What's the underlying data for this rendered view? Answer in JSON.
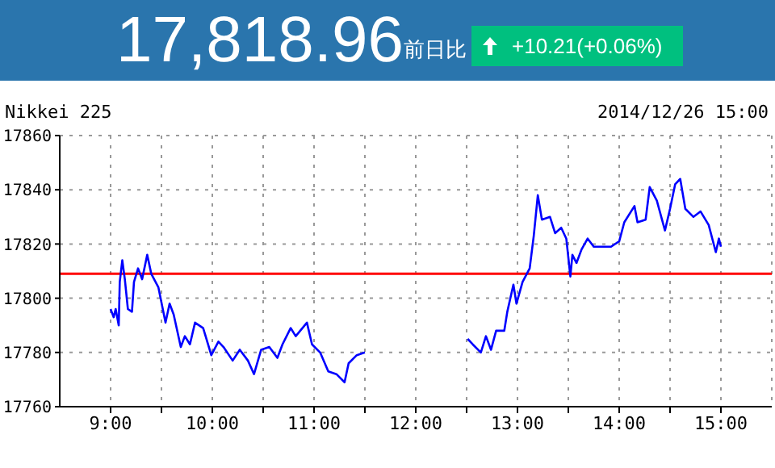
{
  "chart_data": {
    "type": "line",
    "title": "17,818.96",
    "subtitle": "前日比",
    "annotations": [
      "+10.21(+0.06%)",
      "Nikkei 225",
      "2014/12/26 15:00"
    ],
    "x": [
      9.0,
      9.03,
      9.05,
      9.08,
      9.09,
      9.115,
      9.14,
      9.17,
      9.21,
      9.23,
      9.27,
      9.31,
      9.36,
      9.4,
      9.47,
      9.54,
      9.58,
      9.62,
      9.69,
      9.73,
      9.78,
      9.83,
      9.91,
      9.99,
      10.06,
      10.11,
      10.2,
      10.27,
      10.35,
      10.41,
      10.48,
      10.56,
      10.64,
      10.69,
      10.77,
      10.82,
      10.93,
      10.98,
      11.06,
      11.14,
      11.22,
      11.3,
      11.34,
      11.42,
      11.5,
      12.0,
      12.51,
      12.56,
      12.64,
      12.69,
      12.74,
      12.79,
      12.87,
      12.9,
      12.96,
      12.99,
      13.05,
      13.12,
      13.16,
      13.2,
      13.24,
      13.32,
      13.37,
      13.43,
      13.48,
      13.52,
      13.54,
      13.58,
      13.63,
      13.69,
      13.75,
      13.84,
      13.92,
      14.0,
      14.05,
      14.15,
      14.18,
      14.26,
      14.3,
      14.37,
      14.45,
      14.5,
      14.55,
      14.6,
      14.65,
      14.73,
      14.8,
      14.88,
      14.95,
      14.98,
      15.0
    ],
    "series": [
      {
        "color": "#0000ff",
        "values": [
          17796,
          17793,
          17796,
          17790,
          17806,
          17814,
          17807,
          17796,
          17795,
          17806,
          17811,
          17807,
          17816,
          17809,
          17804,
          17791,
          17798,
          17794,
          17782,
          17786,
          17783,
          17791,
          17789,
          17779,
          17784,
          17782,
          17777,
          17781,
          17777,
          17772,
          17781,
          17782,
          17778,
          17783,
          17789,
          17786,
          17791,
          17783,
          17780,
          17773,
          17772,
          17769,
          17776,
          17779,
          17780,
          null,
          17785,
          17783,
          17780,
          17786,
          17781,
          17788,
          17788,
          17795,
          17805,
          17798,
          17806,
          17811,
          17823,
          17838,
          17829,
          17830,
          17824,
          17826,
          17822,
          17808,
          17816,
          17813,
          17818,
          17822,
          17819,
          17819,
          17819,
          17821,
          17828,
          17834,
          17828,
          17829,
          17841,
          17836,
          17825,
          17833,
          17842,
          17844,
          17833,
          17830,
          17832,
          17827,
          17817,
          17822,
          17819
        ]
      }
    ],
    "xlim": [
      8.5,
      15.5
    ],
    "xticks": [
      {
        "value": 9,
        "label": "9:00"
      },
      {
        "value": 9.5,
        "label": null
      },
      {
        "value": 10,
        "label": "10:00"
      },
      {
        "value": 10.5,
        "label": null
      },
      {
        "value": 11,
        "label": "11:00"
      },
      {
        "value": 11.5,
        "label": null
      },
      {
        "value": 12,
        "label": "12:00"
      },
      {
        "value": 12.5,
        "label": null
      },
      {
        "value": 13,
        "label": "13:00"
      },
      {
        "value": 13.5,
        "label": null
      },
      {
        "value": 14,
        "label": "14:00"
      },
      {
        "value": 14.5,
        "label": null
      },
      {
        "value": 15,
        "label": "15:00"
      }
    ],
    "ylim": [
      17760,
      17860
    ],
    "yticks": [
      17760,
      17780,
      17800,
      17820,
      17840,
      17860
    ],
    "ref_lines": [
      {
        "axis": "y",
        "value": 17809,
        "color": "#ff0000"
      }
    ],
    "grid": true,
    "marker": "none",
    "line_style": "solid"
  }
}
